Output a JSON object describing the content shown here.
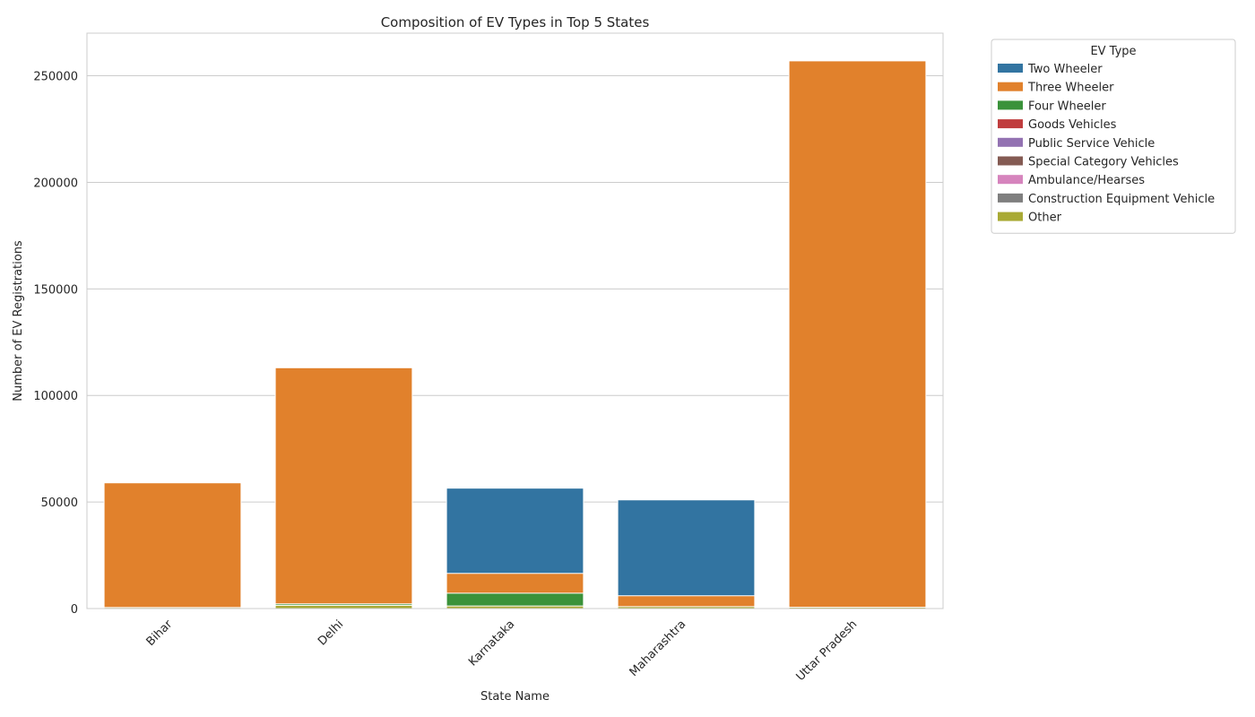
{
  "chart_data": {
    "type": "bar",
    "title": "Composition of EV Types in Top 5 States",
    "xlabel": "State Name",
    "ylabel": "Number of EV Registrations",
    "ylim": [
      0,
      270000
    ],
    "yticks": [
      0,
      50000,
      100000,
      150000,
      200000,
      250000
    ],
    "grid": true,
    "legend_placement": "outside-top-right",
    "legend_title": "EV Type",
    "categories": [
      "Bihar",
      "Delhi",
      "Karnataka",
      "Maharashtra",
      "Uttar Pradesh"
    ],
    "series": [
      {
        "name": "Two Wheeler",
        "color": "#3274a1",
        "values": [
          0,
          0,
          56500,
          51000,
          0
        ]
      },
      {
        "name": "Three Wheeler",
        "color": "#e1812c",
        "values": [
          59000,
          113000,
          16500,
          6000,
          257000
        ]
      },
      {
        "name": "Four Wheeler",
        "color": "#3a923a",
        "values": [
          0,
          2200,
          7200,
          0,
          0
        ]
      },
      {
        "name": "Goods Vehicles",
        "color": "#c03d3e",
        "values": [
          0,
          0,
          0,
          0,
          0
        ]
      },
      {
        "name": "Public Service Vehicle",
        "color": "#9372b2",
        "values": [
          0,
          0,
          0,
          0,
          0
        ]
      },
      {
        "name": "Special Category Vehicles",
        "color": "#845b53",
        "values": [
          0,
          0,
          0,
          0,
          0
        ]
      },
      {
        "name": "Ambulance/Hearses",
        "color": "#d684bd",
        "values": [
          0,
          0,
          0,
          0,
          0
        ]
      },
      {
        "name": "Construction Equipment Vehicle",
        "color": "#7f7f7f",
        "values": [
          0,
          0,
          0,
          0,
          0
        ]
      },
      {
        "name": "Other",
        "color": "#a9aa35",
        "values": [
          500,
          1500,
          1200,
          900,
          600
        ]
      }
    ]
  }
}
